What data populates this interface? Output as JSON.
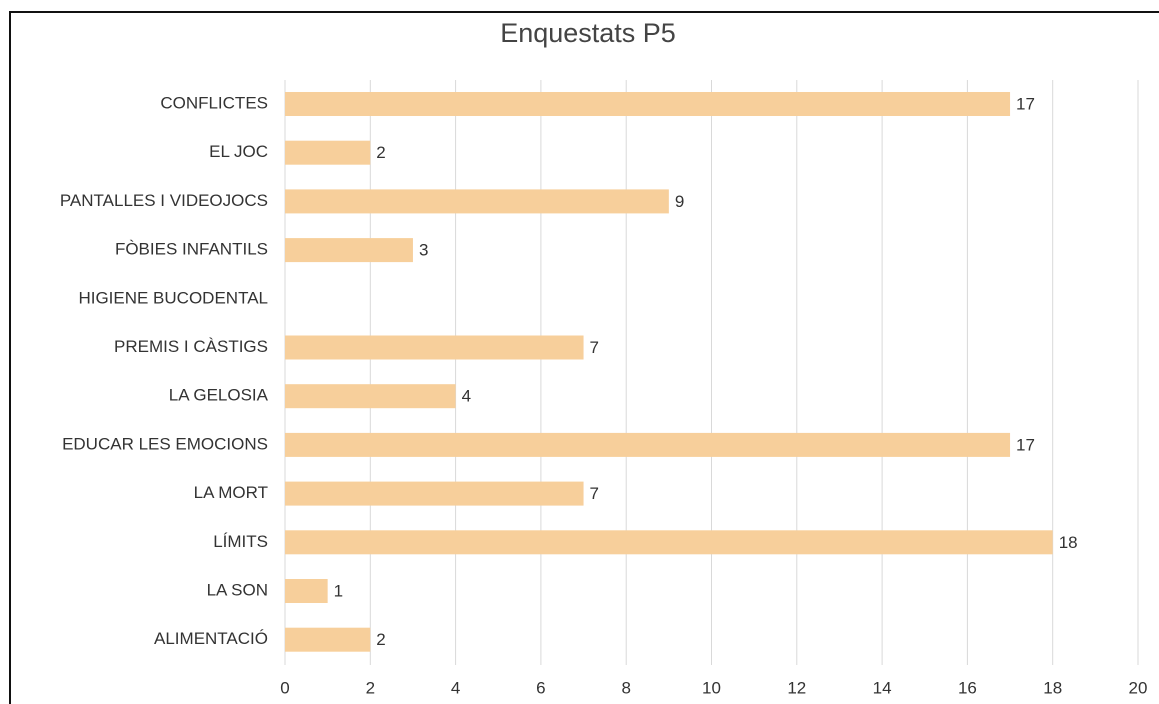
{
  "chart_data": {
    "type": "bar",
    "orientation": "horizontal",
    "title": "Enquestats P5",
    "categories": [
      "CONFLICTES",
      "EL JOC",
      "PANTALLES I VIDEOJOCS",
      "FÒBIES INFANTILS",
      "HIGIENE BUCODENTAL",
      "PREMIS I CÀSTIGS",
      "LA GELOSIA",
      "EDUCAR LES EMOCIONS",
      "LA MORT",
      "LÍMITS",
      "LA SON",
      "ALIMENTACIÓ"
    ],
    "values": [
      17,
      2,
      9,
      3,
      null,
      7,
      4,
      17,
      7,
      18,
      1,
      2
    ],
    "color": "#f7cf9b",
    "xlim": [
      0,
      20
    ],
    "xticks": [
      0,
      2,
      4,
      6,
      8,
      10,
      12,
      14,
      16,
      18,
      20
    ],
    "grid": true
  }
}
